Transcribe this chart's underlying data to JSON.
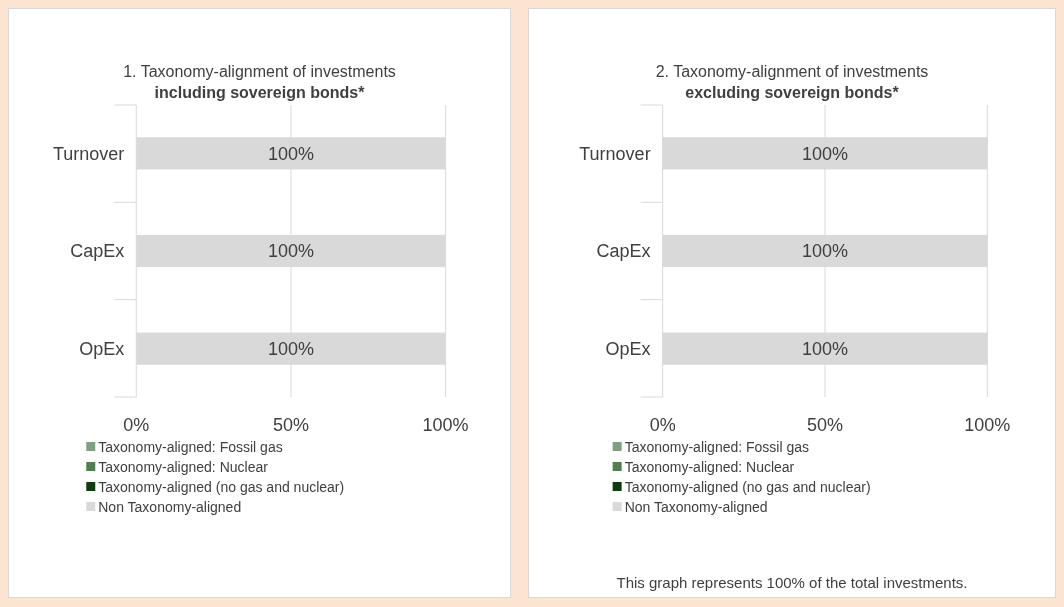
{
  "chart_data": [
    {
      "type": "bar",
      "orientation": "horizontal",
      "stacked": true,
      "title": "1. Taxonomy-alignment of investments",
      "subtitle": "including sovereign bonds*",
      "categories": [
        "Turnover",
        "CapEx",
        "OpEx"
      ],
      "series": [
        {
          "name": "Taxonomy-aligned: Fossil gas",
          "color": "#7fa07f",
          "values": [
            0,
            0,
            0
          ]
        },
        {
          "name": "Taxonomy-aligned: Nuclear",
          "color": "#4f7f4f",
          "values": [
            0,
            0,
            0
          ]
        },
        {
          "name": "Taxonomy-aligned (no gas and nuclear)",
          "color": "#0f3d0f",
          "values": [
            0,
            0,
            0
          ]
        },
        {
          "name": "Non Taxonomy-aligned",
          "color": "#d9d9d9",
          "values": [
            100,
            100,
            100
          ],
          "value_labels": [
            "100%",
            "100%",
            "100%"
          ]
        }
      ],
      "xlim": [
        0,
        100
      ],
      "xticks": [
        {
          "value": 0,
          "label": "0%"
        },
        {
          "value": 50,
          "label": "50%"
        },
        {
          "value": 100,
          "label": "100%"
        }
      ],
      "grid": "x",
      "legend": "bottom"
    },
    {
      "type": "bar",
      "orientation": "horizontal",
      "stacked": true,
      "title": "2. Taxonomy-alignment of investments",
      "subtitle": "excluding sovereign bonds*",
      "categories": [
        "Turnover",
        "CapEx",
        "OpEx"
      ],
      "series": [
        {
          "name": "Taxonomy-aligned: Fossil gas",
          "color": "#7fa07f",
          "values": [
            0,
            0,
            0
          ]
        },
        {
          "name": "Taxonomy-aligned: Nuclear",
          "color": "#4f7f4f",
          "values": [
            0,
            0,
            0
          ]
        },
        {
          "name": "Taxonomy-aligned (no gas and nuclear)",
          "color": "#0f3d0f",
          "values": [
            0,
            0,
            0
          ]
        },
        {
          "name": "Non Taxonomy-aligned",
          "color": "#d9d9d9",
          "values": [
            100,
            100,
            100
          ],
          "value_labels": [
            "100%",
            "100%",
            "100%"
          ]
        }
      ],
      "xlim": [
        0,
        100
      ],
      "xticks": [
        {
          "value": 0,
          "label": "0%"
        },
        {
          "value": 50,
          "label": "50%"
        },
        {
          "value": 100,
          "label": "100%"
        }
      ],
      "grid": "x",
      "legend": "bottom",
      "annotations": [
        "This graph represents 100% of the total investments."
      ]
    }
  ]
}
